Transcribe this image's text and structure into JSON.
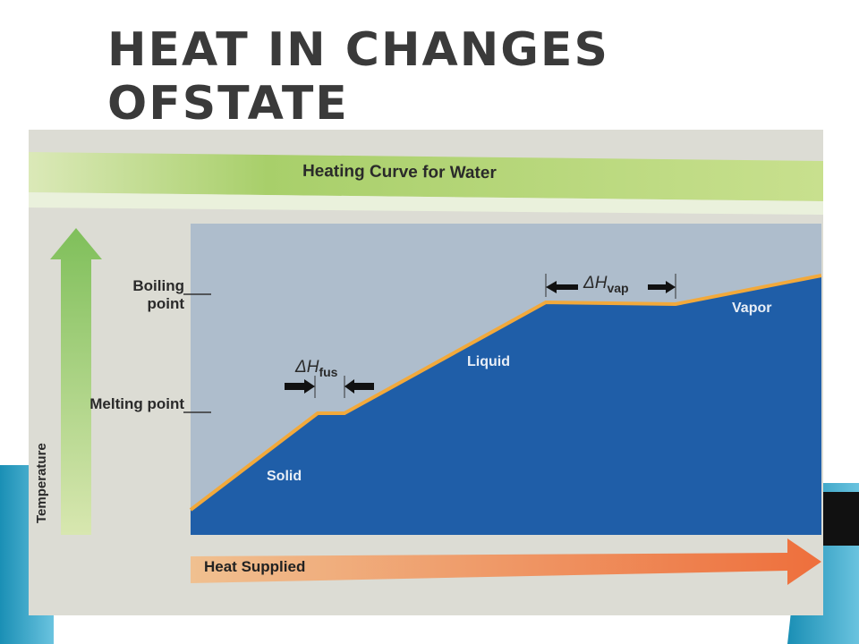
{
  "header": {
    "title": "HEAT IN CHANGES OFSTATE"
  },
  "figure": {
    "title": "Heating Curve for Water",
    "y_axis_label": "Temperature",
    "x_axis_label": "Heat Supplied",
    "levels": [
      "Boiling point",
      "Melting point"
    ],
    "phases": [
      "Solid",
      "Liquid",
      "Vapor"
    ],
    "delta_h_fus": {
      "symbol": "ΔH",
      "subscript": "fus"
    },
    "delta_h_vap": {
      "symbol": "ΔH",
      "subscript": "vap"
    }
  }
}
